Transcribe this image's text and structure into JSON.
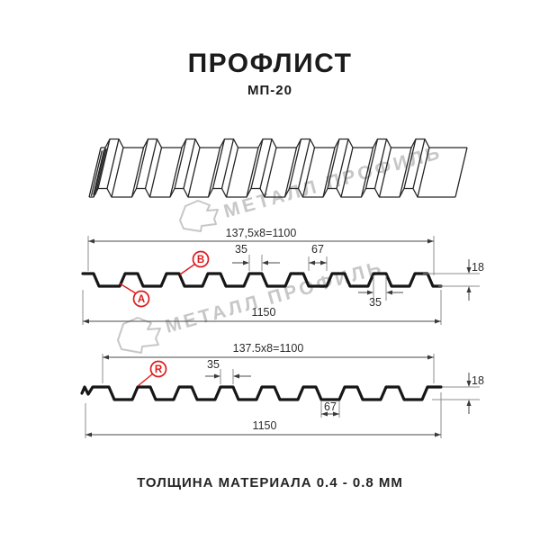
{
  "page": {
    "title": "ПРОФЛИСТ",
    "subtitle": "МП-20",
    "footer_note": "ТОЛЩИНА МАТЕРИАЛА 0.4 - 0.8 ММ"
  },
  "watermark": {
    "text": "МЕТАЛЛ ПРОФИЛЬ"
  },
  "colors": {
    "accent_red": "#dd1c1c",
    "drawing_line": "#161616",
    "watermark_gray": "#c7c7c7"
  },
  "profile_top_view": {
    "labels": {
      "a": "A",
      "b": "B"
    },
    "dims": {
      "module": "137,5x8=1100",
      "overall": "1150",
      "rib_top_width": "35",
      "valley_width": "67",
      "height": "18",
      "rib_bottom_width": "35"
    }
  },
  "profile_bottom_view": {
    "labels": {
      "r": "R"
    },
    "dims": {
      "module": "137.5x8=1100",
      "overall": "1150",
      "rib_top_width": "35",
      "valley_width": "67",
      "height": "18"
    }
  }
}
